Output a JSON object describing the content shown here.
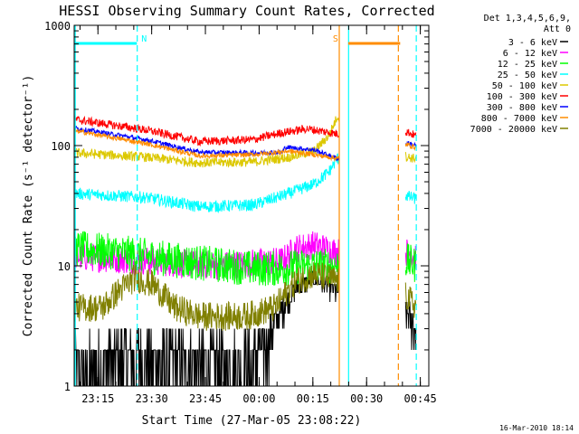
{
  "chart_data": {
    "type": "line",
    "title": "HESSI Observing Summary Count Rates, Corrected",
    "xlabel": "Start Time (27-Mar-05 23:08:22)",
    "ylabel": "Corrected Count Rate (s⁻¹ detector⁻¹)",
    "yscale": "log",
    "ylim": [
      1,
      1000
    ],
    "xlim_minutes": [
      0,
      99
    ],
    "ytick_labels": [
      "1",
      "10",
      "100",
      "1000"
    ],
    "ytick_values": [
      1,
      10,
      100,
      1000
    ],
    "xtick_labels": [
      "23:15",
      "23:30",
      "23:45",
      "00:00",
      "00:15",
      "00:30",
      "00:45"
    ],
    "xtick_values_minutes": [
      6.63,
      21.63,
      36.63,
      51.63,
      66.63,
      81.63,
      96.63
    ],
    "legend_header": [
      "Det 1,3,4,5,6,9,",
      "Att 0"
    ],
    "timestamp": "16-Mar-2010 18:14",
    "annotations": [
      {
        "label": "N",
        "color": "#00ffff",
        "bar_minutes": [
          0,
          17.5
        ]
      },
      {
        "label": "S",
        "color": "#ff8c00",
        "bar_minutes": [
          76.5,
          91
        ]
      }
    ],
    "vlines": [
      {
        "minutes": 0.3,
        "color": "#00ffff",
        "style": "solid"
      },
      {
        "minutes": 17.6,
        "color": "#00ffff",
        "style": "dashed"
      },
      {
        "minutes": 74.0,
        "color": "#ff8c00",
        "style": "solid"
      },
      {
        "minutes": 76.6,
        "color": "#00ffff",
        "style": "solid"
      },
      {
        "minutes": 90.5,
        "color": "#ff8c00",
        "style": "dashed"
      },
      {
        "minutes": 95.5,
        "color": "#00ffff",
        "style": "dashed"
      }
    ],
    "gaps_minutes": [
      [
        74.0,
        92.5
      ]
    ],
    "series": [
      {
        "name": "3 - 6 keV",
        "color": "#000000",
        "noise": 0.9,
        "points": [
          [
            0,
            1.2
          ],
          [
            15,
            1.8
          ],
          [
            25,
            1.6
          ],
          [
            50,
            1.5
          ],
          [
            54,
            2.5
          ],
          [
            58,
            4.5
          ],
          [
            62,
            6.5
          ],
          [
            67,
            8.0
          ],
          [
            70,
            7.0
          ],
          [
            73.5,
            6.0
          ],
          [
            93,
            4.0
          ],
          [
            95.5,
            3.0
          ]
        ]
      },
      {
        "name": "6 - 12 keV",
        "color": "#ff00ff",
        "noise": 0.12,
        "points": [
          [
            0,
            12
          ],
          [
            20,
            11
          ],
          [
            40,
            10
          ],
          [
            58,
            11
          ],
          [
            62,
            14
          ],
          [
            67,
            15
          ],
          [
            73.5,
            13
          ],
          [
            93,
            13
          ],
          [
            95.5,
            12
          ]
        ]
      },
      {
        "name": "12 - 25 keV",
        "color": "#00ff00",
        "noise": 0.15,
        "points": [
          [
            0,
            14
          ],
          [
            12,
            13
          ],
          [
            30,
            11
          ],
          [
            50,
            9.5
          ],
          [
            58,
            9.5
          ],
          [
            65,
            10
          ],
          [
            73.5,
            10
          ],
          [
            93,
            11
          ],
          [
            95.5,
            10
          ]
        ]
      },
      {
        "name": "25 - 50 keV",
        "color": "#00ffff",
        "noise": 0.05,
        "points": [
          [
            0,
            40
          ],
          [
            20,
            37
          ],
          [
            35,
            31
          ],
          [
            50,
            32
          ],
          [
            60,
            40
          ],
          [
            67,
            48
          ],
          [
            71,
            60
          ],
          [
            73.5,
            78
          ],
          [
            93,
            38
          ],
          [
            95.5,
            36
          ]
        ]
      },
      {
        "name": "50 - 100 keV",
        "color": "#dcc800",
        "noise": 0.04,
        "points": [
          [
            0,
            87
          ],
          [
            20,
            80
          ],
          [
            35,
            72
          ],
          [
            50,
            73
          ],
          [
            60,
            80
          ],
          [
            67,
            90
          ],
          [
            71,
            120
          ],
          [
            73.5,
            175
          ],
          [
            93,
            80
          ],
          [
            95.5,
            78
          ]
        ]
      },
      {
        "name": "100 - 300 keV",
        "color": "#ff0000",
        "noise": 0.035,
        "points": [
          [
            0,
            165
          ],
          [
            20,
            135
          ],
          [
            35,
            108
          ],
          [
            50,
            112
          ],
          [
            58,
            128
          ],
          [
            65,
            138
          ],
          [
            73.5,
            125
          ],
          [
            93,
            130
          ],
          [
            95.5,
            120
          ]
        ]
      },
      {
        "name": "300 - 800 keV",
        "color": "#0000ff",
        "noise": 0.02,
        "points": [
          [
            0,
            140
          ],
          [
            20,
            112
          ],
          [
            35,
            88
          ],
          [
            50,
            87
          ],
          [
            58,
            88
          ],
          [
            59,
            97
          ],
          [
            67,
            92
          ],
          [
            73.5,
            78
          ],
          [
            93,
            105
          ],
          [
            95.5,
            100
          ]
        ]
      },
      {
        "name": "800 - 7000 keV",
        "color": "#ff8c00",
        "noise": 0.02,
        "points": [
          [
            0,
            133
          ],
          [
            20,
            104
          ],
          [
            35,
            82
          ],
          [
            50,
            84
          ],
          [
            60,
            90
          ],
          [
            67,
            84
          ],
          [
            73.5,
            78
          ],
          [
            93,
            102
          ],
          [
            95.5,
            96
          ]
        ]
      },
      {
        "name": "7000 - 20000 keV",
        "color": "#808000",
        "noise": 0.12,
        "points": [
          [
            0,
            4.5
          ],
          [
            8,
            4.5
          ],
          [
            12,
            6.0
          ],
          [
            17,
            8.0
          ],
          [
            22,
            7.0
          ],
          [
            28,
            4.5
          ],
          [
            35,
            3.8
          ],
          [
            48,
            3.8
          ],
          [
            56,
            4.5
          ],
          [
            62,
            7.5
          ],
          [
            67,
            8.5
          ],
          [
            73.5,
            7.5
          ],
          [
            93,
            5.5
          ],
          [
            95.5,
            4.5
          ]
        ]
      }
    ]
  }
}
